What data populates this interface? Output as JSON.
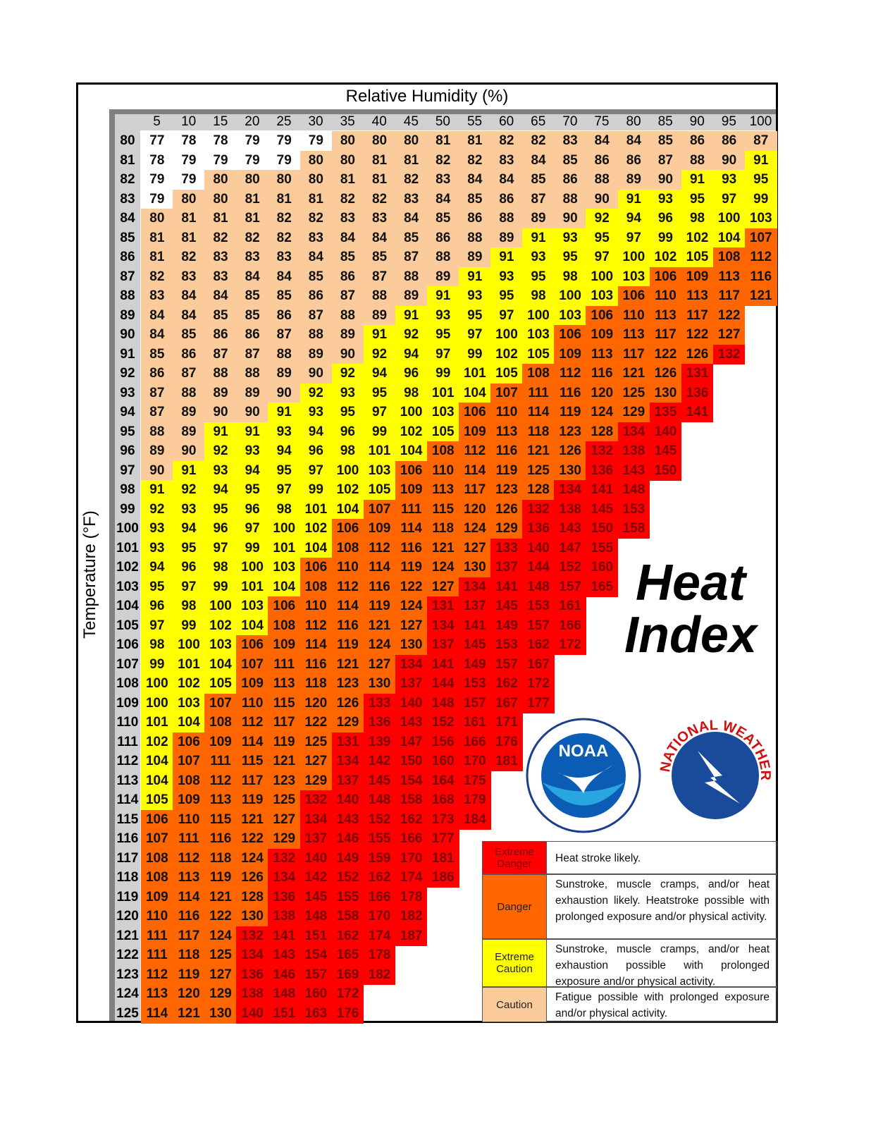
{
  "title": "Relative Humidity (%)",
  "y_label": "Temperature (°F)",
  "columns": [
    5,
    10,
    15,
    20,
    25,
    30,
    35,
    40,
    45,
    50,
    55,
    60,
    65,
    70,
    75,
    80,
    85,
    90,
    95,
    100
  ],
  "rows": [
    {
      "temp": 80,
      "values": [
        77,
        78,
        78,
        79,
        79,
        79,
        80,
        80,
        80,
        81,
        81,
        82,
        82,
        83,
        84,
        84,
        85,
        86,
        86,
        87
      ]
    },
    {
      "temp": 81,
      "values": [
        78,
        79,
        79,
        79,
        79,
        80,
        80,
        81,
        81,
        82,
        82,
        83,
        84,
        85,
        86,
        86,
        87,
        88,
        90,
        91
      ]
    },
    {
      "temp": 82,
      "values": [
        79,
        79,
        80,
        80,
        80,
        80,
        81,
        81,
        82,
        83,
        84,
        84,
        85,
        86,
        88,
        89,
        90,
        91,
        93,
        95
      ]
    },
    {
      "temp": 83,
      "values": [
        79,
        80,
        80,
        81,
        81,
        81,
        82,
        82,
        83,
        84,
        85,
        86,
        87,
        88,
        90,
        91,
        93,
        95,
        97,
        99
      ]
    },
    {
      "temp": 84,
      "values": [
        80,
        81,
        81,
        81,
        82,
        82,
        83,
        83,
        84,
        85,
        86,
        88,
        89,
        90,
        92,
        94,
        96,
        98,
        100,
        103
      ]
    },
    {
      "temp": 85,
      "values": [
        81,
        81,
        82,
        82,
        82,
        83,
        84,
        84,
        85,
        86,
        88,
        89,
        91,
        93,
        95,
        97,
        99,
        102,
        104,
        107
      ]
    },
    {
      "temp": 86,
      "values": [
        81,
        82,
        83,
        83,
        83,
        84,
        85,
        85,
        87,
        88,
        89,
        91,
        93,
        95,
        97,
        100,
        102,
        105,
        108,
        112
      ]
    },
    {
      "temp": 87,
      "values": [
        82,
        83,
        83,
        84,
        84,
        85,
        86,
        87,
        88,
        89,
        91,
        93,
        95,
        98,
        100,
        103,
        106,
        109,
        113,
        116
      ]
    },
    {
      "temp": 88,
      "values": [
        83,
        84,
        84,
        85,
        85,
        86,
        87,
        88,
        89,
        91,
        93,
        95,
        98,
        100,
        103,
        106,
        110,
        113,
        117,
        121
      ]
    },
    {
      "temp": 89,
      "values": [
        84,
        84,
        85,
        85,
        86,
        87,
        88,
        89,
        91,
        93,
        95,
        97,
        100,
        103,
        106,
        110,
        113,
        117,
        122
      ]
    },
    {
      "temp": 90,
      "values": [
        84,
        85,
        86,
        86,
        87,
        88,
        89,
        91,
        92,
        95,
        97,
        100,
        103,
        106,
        109,
        113,
        117,
        122,
        127
      ]
    },
    {
      "temp": 91,
      "values": [
        85,
        86,
        87,
        87,
        88,
        89,
        90,
        92,
        94,
        97,
        99,
        102,
        105,
        109,
        113,
        117,
        122,
        126,
        132
      ]
    },
    {
      "temp": 92,
      "values": [
        86,
        87,
        88,
        88,
        89,
        90,
        92,
        94,
        96,
        99,
        101,
        105,
        108,
        112,
        116,
        121,
        126,
        131
      ]
    },
    {
      "temp": 93,
      "values": [
        87,
        88,
        89,
        89,
        90,
        92,
        93,
        95,
        98,
        101,
        104,
        107,
        111,
        116,
        120,
        125,
        130,
        136
      ]
    },
    {
      "temp": 94,
      "values": [
        87,
        89,
        90,
        90,
        91,
        93,
        95,
        97,
        100,
        103,
        106,
        110,
        114,
        119,
        124,
        129,
        135,
        141
      ]
    },
    {
      "temp": 95,
      "values": [
        88,
        89,
        91,
        91,
        93,
        94,
        96,
        99,
        102,
        105,
        109,
        113,
        118,
        123,
        128,
        134,
        140
      ]
    },
    {
      "temp": 96,
      "values": [
        89,
        90,
        92,
        93,
        94,
        96,
        98,
        101,
        104,
        108,
        112,
        116,
        121,
        126,
        132,
        138,
        145
      ]
    },
    {
      "temp": 97,
      "values": [
        90,
        91,
        93,
        94,
        95,
        97,
        100,
        103,
        106,
        110,
        114,
        119,
        125,
        130,
        136,
        143,
        150
      ]
    },
    {
      "temp": 98,
      "values": [
        91,
        92,
        94,
        95,
        97,
        99,
        102,
        105,
        109,
        113,
        117,
        123,
        128,
        134,
        141,
        148
      ]
    },
    {
      "temp": 99,
      "values": [
        92,
        93,
        95,
        96,
        98,
        101,
        104,
        107,
        111,
        115,
        120,
        126,
        132,
        138,
        145,
        153
      ]
    },
    {
      "temp": 100,
      "values": [
        93,
        94,
        96,
        97,
        100,
        102,
        106,
        109,
        114,
        118,
        124,
        129,
        136,
        143,
        150,
        158
      ]
    },
    {
      "temp": 101,
      "values": [
        93,
        95,
        97,
        99,
        101,
        104,
        108,
        112,
        116,
        121,
        127,
        133,
        140,
        147,
        155
      ]
    },
    {
      "temp": 102,
      "values": [
        94,
        96,
        98,
        100,
        103,
        106,
        110,
        114,
        119,
        124,
        130,
        137,
        144,
        152,
        160
      ]
    },
    {
      "temp": 103,
      "values": [
        95,
        97,
        99,
        101,
        104,
        108,
        112,
        116,
        122,
        127,
        134,
        141,
        148,
        157,
        165
      ]
    },
    {
      "temp": 104,
      "values": [
        96,
        98,
        100,
        103,
        106,
        110,
        114,
        119,
        124,
        131,
        137,
        145,
        153,
        161
      ]
    },
    {
      "temp": 105,
      "values": [
        97,
        99,
        102,
        104,
        108,
        112,
        116,
        121,
        127,
        134,
        141,
        149,
        157,
        166
      ]
    },
    {
      "temp": 106,
      "values": [
        98,
        100,
        103,
        106,
        109,
        114,
        119,
        124,
        130,
        137,
        145,
        153,
        162,
        172
      ]
    },
    {
      "temp": 107,
      "values": [
        99,
        101,
        104,
        107,
        111,
        116,
        121,
        127,
        134,
        141,
        149,
        157,
        167
      ]
    },
    {
      "temp": 108,
      "values": [
        100,
        102,
        105,
        109,
        113,
        118,
        123,
        130,
        137,
        144,
        153,
        162,
        172
      ]
    },
    {
      "temp": 109,
      "values": [
        100,
        103,
        107,
        110,
        115,
        120,
        126,
        133,
        140,
        148,
        157,
        167,
        177
      ]
    },
    {
      "temp": 110,
      "values": [
        101,
        104,
        108,
        112,
        117,
        122,
        129,
        136,
        143,
        152,
        161,
        171
      ]
    },
    {
      "temp": 111,
      "values": [
        102,
        106,
        109,
        114,
        119,
        125,
        131,
        139,
        147,
        156,
        166,
        176
      ]
    },
    {
      "temp": 112,
      "values": [
        104,
        107,
        111,
        115,
        121,
        127,
        134,
        142,
        150,
        160,
        170,
        181
      ]
    },
    {
      "temp": 113,
      "values": [
        104,
        108,
        112,
        117,
        123,
        129,
        137,
        145,
        154,
        164,
        175
      ]
    },
    {
      "temp": 114,
      "values": [
        105,
        109,
        113,
        119,
        125,
        132,
        140,
        148,
        158,
        168,
        179
      ]
    },
    {
      "temp": 115,
      "values": [
        106,
        110,
        115,
        121,
        127,
        134,
        143,
        152,
        162,
        173,
        184
      ]
    },
    {
      "temp": 116,
      "values": [
        107,
        111,
        116,
        122,
        129,
        137,
        146,
        155,
        166,
        177
      ]
    },
    {
      "temp": 117,
      "values": [
        108,
        112,
        118,
        124,
        132,
        140,
        149,
        159,
        170,
        181
      ]
    },
    {
      "temp": 118,
      "values": [
        108,
        113,
        119,
        126,
        134,
        142,
        152,
        162,
        174,
        186
      ]
    },
    {
      "temp": 119,
      "values": [
        109,
        114,
        121,
        128,
        136,
        145,
        155,
        166,
        178
      ]
    },
    {
      "temp": 120,
      "values": [
        110,
        116,
        122,
        130,
        138,
        148,
        158,
        170,
        182
      ]
    },
    {
      "temp": 121,
      "values": [
        111,
        117,
        124,
        132,
        141,
        151,
        162,
        174,
        187
      ]
    },
    {
      "temp": 122,
      "values": [
        111,
        118,
        125,
        134,
        143,
        154,
        165,
        178
      ]
    },
    {
      "temp": 123,
      "values": [
        112,
        119,
        127,
        136,
        146,
        157,
        169,
        182
      ]
    },
    {
      "temp": 124,
      "values": [
        113,
        120,
        129,
        138,
        148,
        160,
        172
      ]
    },
    {
      "temp": 125,
      "values": [
        114,
        121,
        130,
        140,
        151,
        163,
        176
      ]
    }
  ],
  "heat_index": [
    "Heat",
    "Index"
  ],
  "logos": [
    "NOAA",
    "NATIONAL WEATHER SERVICE"
  ],
  "legend": [
    {
      "label": "Extreme Danger",
      "color": "#ff0000",
      "text": "Heat stroke likely."
    },
    {
      "label": "Danger",
      "color": "#ff6600",
      "text": "Sunstroke, muscle cramps, and/or heat exhaustion likely. Heatstroke possible with prolonged exposure and/or physical activity."
    },
    {
      "label": "Extreme Caution",
      "color": "#ffff00",
      "text": "Sunstroke, muscle cramps, and/or heat exhaustion possible with prolonged exposure and/or physical activity."
    },
    {
      "label": "Caution",
      "color": "#fbcb9c",
      "text": "Fatigue possible with prolonged exposure and/or physical activity."
    }
  ]
}
